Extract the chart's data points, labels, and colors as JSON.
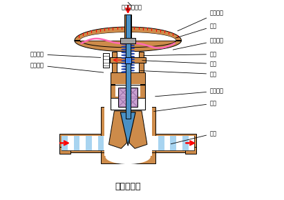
{
  "title": "气动薄膜阀",
  "bg_color": "#ffffff",
  "copper_color": "#CD8B4A",
  "blue_color": "#4A90C4",
  "blue_light": "#A8D4F0",
  "pink_color": "#FF69B4",
  "purple_color": "#C8A0D0",
  "purple_dark": "#9B72AA",
  "gray_color": "#A0A0A0",
  "red_color": "#FF0000",
  "dark_blue": "#2244AA",
  "labels": {
    "pressure_inlet": "压力信号入口",
    "upper_chamber": "膜室上腔",
    "diaphragm": "膜片",
    "lower_chamber": "膜室下腔",
    "spring": "弹簧",
    "push_rod": "推杆",
    "valve_stem": "阀杆",
    "stroke_indicator": "行程指针",
    "stroke_scale": "行程刻度",
    "seal_packing": "密封填料",
    "valve_core": "阀芯",
    "valve_seat": "阀座"
  }
}
